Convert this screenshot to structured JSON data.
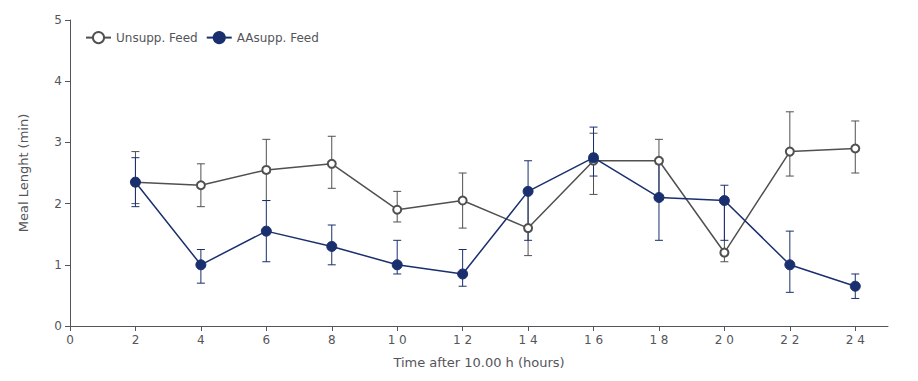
{
  "chart_data": {
    "type": "line",
    "xlabel": "Time after 10.00 h (hours)",
    "ylabel": "Meal Lenght (min)",
    "x": [
      2,
      4,
      6,
      8,
      10,
      12,
      14,
      16,
      18,
      20,
      22,
      24
    ],
    "series": [
      {
        "name": "Unsupp. Feed",
        "color": "#505050",
        "marker": "open_circle",
        "values": [
          2.35,
          2.3,
          2.55,
          2.65,
          1.9,
          2.05,
          1.6,
          2.7,
          2.7,
          1.2,
          2.85,
          2.9
        ],
        "err_lo": [
          0.35,
          0.35,
          0.5,
          0.4,
          0.2,
          0.45,
          0.45,
          0.55,
          0.55,
          0.15,
          0.4,
          0.4
        ],
        "err_hi": [
          0.5,
          0.35,
          0.5,
          0.45,
          0.3,
          0.45,
          0.65,
          0.45,
          0.35,
          0.85,
          0.65,
          0.45
        ]
      },
      {
        "name": "AAsupp. Feed",
        "color": "#1a2f6e",
        "marker": "circle",
        "values": [
          2.35,
          1.0,
          1.55,
          1.3,
          1.0,
          0.85,
          2.2,
          2.75,
          2.1,
          2.05,
          1.0,
          0.65
        ],
        "err_lo": [
          0.4,
          0.3,
          0.5,
          0.3,
          0.15,
          0.2,
          0.8,
          0.3,
          0.7,
          0.65,
          0.45,
          0.2
        ],
        "err_hi": [
          0.4,
          0.25,
          0.5,
          0.35,
          0.4,
          0.4,
          0.5,
          0.5,
          0.55,
          0.25,
          0.55,
          0.2
        ]
      }
    ],
    "xlim": [
      0,
      25
    ],
    "xticks": [
      0,
      2,
      4,
      6,
      8,
      {
        "value": 10,
        "label": "1 0"
      },
      {
        "value": 12,
        "label": "1 2"
      },
      {
        "value": 14,
        "label": "1 4"
      },
      {
        "value": 16,
        "label": "1 6"
      },
      {
        "value": 18,
        "label": "1 8"
      },
      {
        "value": 20,
        "label": "2 0"
      },
      {
        "value": 22,
        "label": "2 2"
      },
      {
        "value": 24,
        "label": "2 4"
      }
    ],
    "ylim": [
      0,
      5
    ],
    "yticks": [
      0,
      1,
      2,
      3,
      4,
      5
    ],
    "grid": false,
    "legend": "upper left"
  }
}
